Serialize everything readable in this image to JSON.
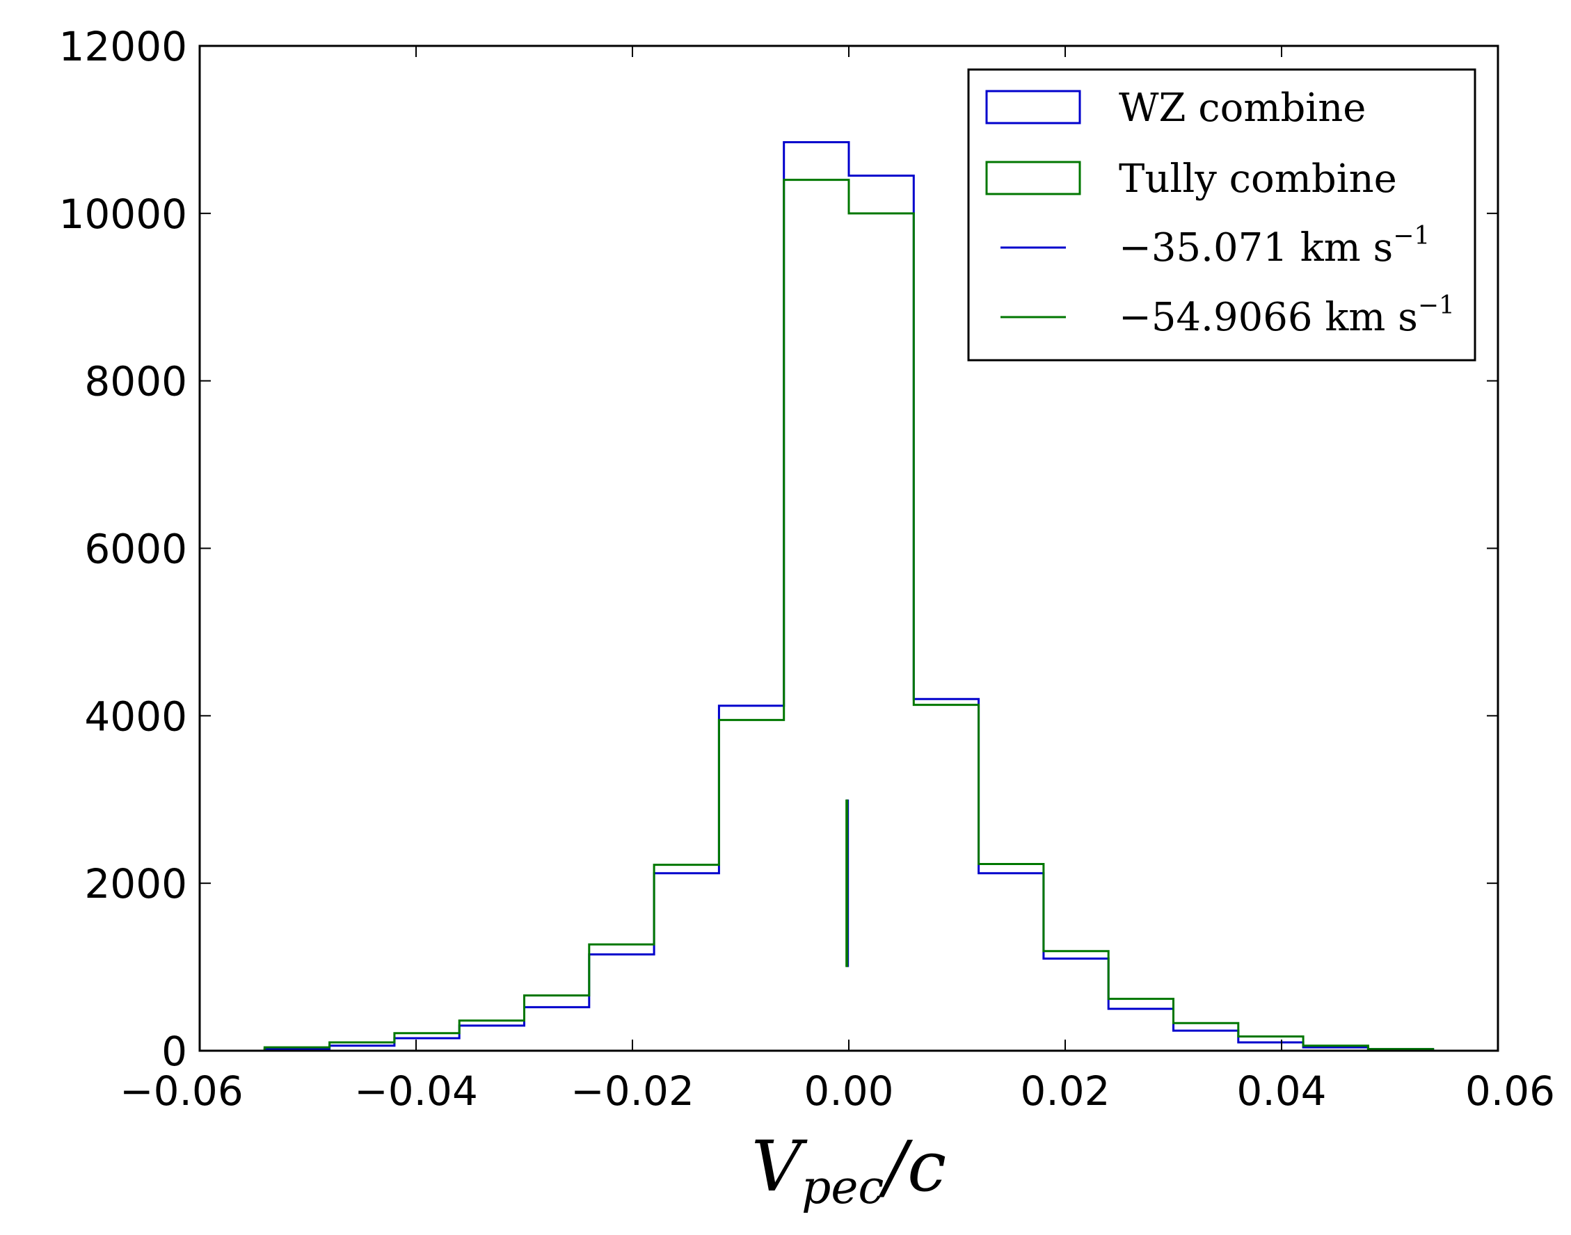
{
  "chart_data": {
    "type": "histogram",
    "xlabel": "V",
    "xlabel_subscript": "pec",
    "xlabel_suffix": "/c",
    "xlim": [
      -0.06,
      0.06
    ],
    "ylim": [
      0,
      12000
    ],
    "x_ticks": [
      -0.06,
      -0.04,
      -0.02,
      0.0,
      0.02,
      0.04,
      0.06
    ],
    "x_tick_labels": [
      "−0.06",
      "−0.04",
      "−0.02",
      "0.00",
      "0.02",
      "0.04",
      "0.06"
    ],
    "y_ticks": [
      0,
      2000,
      4000,
      6000,
      8000,
      10000,
      12000
    ],
    "y_tick_labels": [
      "0",
      "2000",
      "4000",
      "6000",
      "8000",
      "10000",
      "12000"
    ],
    "grid": false,
    "legend_position": "top-right",
    "bin_edges": [
      -0.054,
      -0.048,
      -0.042,
      -0.036,
      -0.03,
      -0.024,
      -0.018,
      -0.012,
      -0.006,
      0.0,
      0.006,
      0.012,
      0.018,
      0.024,
      0.03,
      0.036,
      0.042,
      0.048,
      0.054
    ],
    "series": [
      {
        "name": "WZ combine",
        "color": "#0000cc",
        "counts": [
          20,
          60,
          150,
          300,
          520,
          1150,
          2120,
          4120,
          10850,
          10450,
          4200,
          2120,
          1100,
          500,
          240,
          100,
          40,
          20
        ]
      },
      {
        "name": "Tully combine",
        "color": "#007700",
        "counts": [
          40,
          100,
          210,
          360,
          660,
          1270,
          2220,
          3950,
          10400,
          10000,
          4130,
          2230,
          1190,
          620,
          330,
          170,
          60,
          20
        ]
      }
    ],
    "mean_lines": [
      {
        "label_value": "−35.071",
        "label_unit": "km s",
        "label_exp": "−1",
        "color": "#0000cc",
        "x": -0.000117,
        "y_range": [
          1000,
          3000
        ]
      },
      {
        "label_value": "−54.9066",
        "label_unit": "km s",
        "label_exp": "−1",
        "color": "#007700",
        "x": -0.000183,
        "y_range": [
          1000,
          3000
        ]
      }
    ]
  }
}
